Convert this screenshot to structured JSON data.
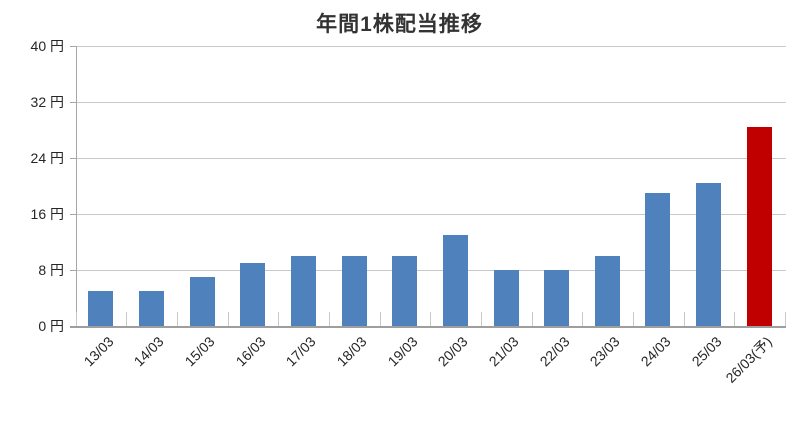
{
  "chart_data": {
    "type": "bar",
    "title": "年間1株配当推移",
    "xlabel": "",
    "ylabel": "",
    "unit": "円",
    "categories": [
      "13/03",
      "14/03",
      "15/03",
      "16/03",
      "17/03",
      "18/03",
      "19/03",
      "20/03",
      "21/03",
      "22/03",
      "23/03",
      "24/03",
      "25/03",
      "26/03(予)"
    ],
    "series": [
      {
        "name": "年間1株配当",
        "values": [
          5,
          5,
          7,
          9,
          10,
          10,
          10,
          13,
          8,
          8,
          10,
          19,
          20.5,
          28.5
        ]
      }
    ],
    "bar_colors": [
      "#4F81BD",
      "#4F81BD",
      "#4F81BD",
      "#4F81BD",
      "#4F81BD",
      "#4F81BD",
      "#4F81BD",
      "#4F81BD",
      "#4F81BD",
      "#4F81BD",
      "#4F81BD",
      "#4F81BD",
      "#4F81BD",
      "#C00000"
    ],
    "forecast_category": "26/03(予)",
    "ylim": [
      0,
      40
    ],
    "yticks": [
      0,
      8,
      16,
      24,
      32,
      40
    ],
    "ytick_labels": [
      "0 円",
      "8 円",
      "16 円",
      "24 円",
      "32 円",
      "40 円"
    ],
    "grid": "horizontal",
    "legend": "none",
    "colors": {
      "bar_default": "#4F81BD",
      "bar_forecast": "#C00000",
      "gridline": "#c9c9c9",
      "axis": "#a6a6a6",
      "title_text": "#333333",
      "tick_text": "#262626"
    }
  }
}
